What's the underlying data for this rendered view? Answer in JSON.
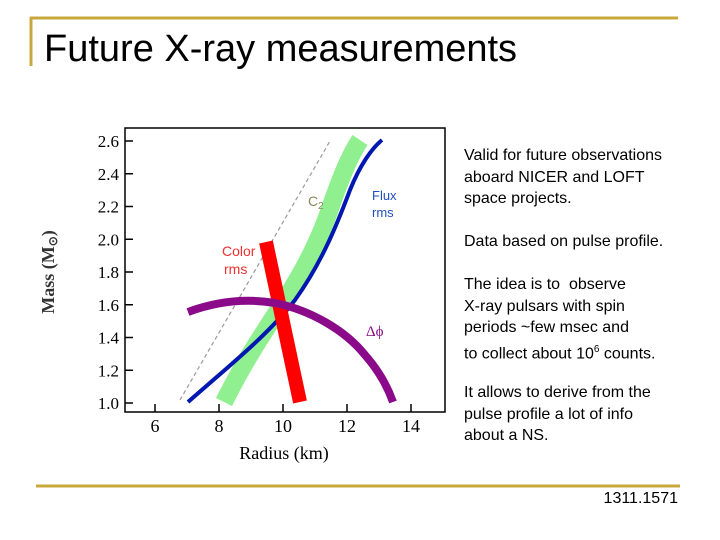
{
  "title": "Future X-ray measurements",
  "figure": {
    "xlabel": "Radius (km)",
    "ylabel": "Mass (M",
    "ylabel_sub": "⊙",
    "ylabel_end": ")",
    "xticks": [
      6,
      8,
      10,
      12,
      14
    ],
    "yticks": [
      {
        "value": 1,
        "label": "1.0"
      },
      1.2,
      1.4,
      1.6,
      1.8,
      {
        "value": 2,
        "label": "2.0"
      },
      2.2,
      2.4,
      2.6
    ],
    "annotations": {
      "c2": "C",
      "c2_sub": "2",
      "flux1": "Flux",
      "flux2": "rms",
      "color1": "Color",
      "color2": "rms",
      "phase": "Δϕ"
    }
  },
  "bullets": [
    [
      "Valid for future observations",
      "aboard NICER and LOFT",
      "space projects."
    ],
    [
      "Data based on pulse profile."
    ],
    [
      "The idea is to  observe",
      "X-ray pulsars with spin",
      "periods ~few msec and"
    ],
    [
      "It allows to derive from the",
      "pulse profile a lot of info",
      "about a NS."
    ]
  ],
  "bullet3_last": {
    "pre": "to collect about 10",
    "sup": "6",
    "post": " counts."
  },
  "footer": "1311.1571"
}
